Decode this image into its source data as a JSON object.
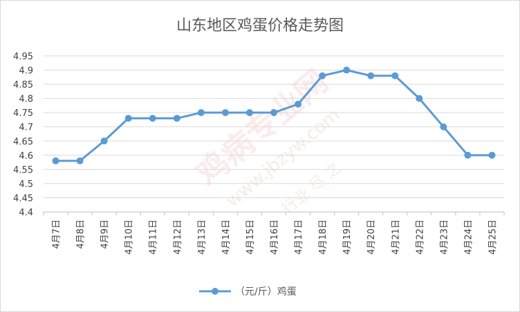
{
  "chart_data": {
    "type": "line",
    "title": "山东地区鸡蛋价格走势图",
    "categories": [
      "4月7日",
      "4月8日",
      "4月9日",
      "4月10日",
      "4月11日",
      "4月12日",
      "4月13日",
      "4月14日",
      "4月15日",
      "4月16日",
      "4月17日",
      "4月18日",
      "4月19日",
      "4月20日",
      "4月21日",
      "4月22日",
      "4月23日",
      "4月24日",
      "4月25日"
    ],
    "series": [
      {
        "name": "（元/斤）鸡蛋",
        "color": "#5b9bd5",
        "values": [
          4.58,
          4.58,
          4.65,
          4.73,
          4.73,
          4.73,
          4.75,
          4.75,
          4.75,
          4.75,
          4.78,
          4.88,
          4.9,
          4.88,
          4.88,
          4.8,
          4.7,
          4.6,
          4.6
        ]
      }
    ],
    "ylim": [
      4.4,
      4.95
    ],
    "yticks": [
      "4.95",
      "4.9",
      "4.85",
      "4.8",
      "4.75",
      "4.7",
      "4.65",
      "4.6",
      "4.55",
      "4.5",
      "4.45",
      "4.4"
    ],
    "xlabel": "",
    "ylabel": "",
    "grid": true,
    "legend": "bottom"
  },
  "watermark": {
    "text": "鸡病专业网",
    "url": "www.jbzyw.com",
    "tagline": "行业 尽 之"
  }
}
